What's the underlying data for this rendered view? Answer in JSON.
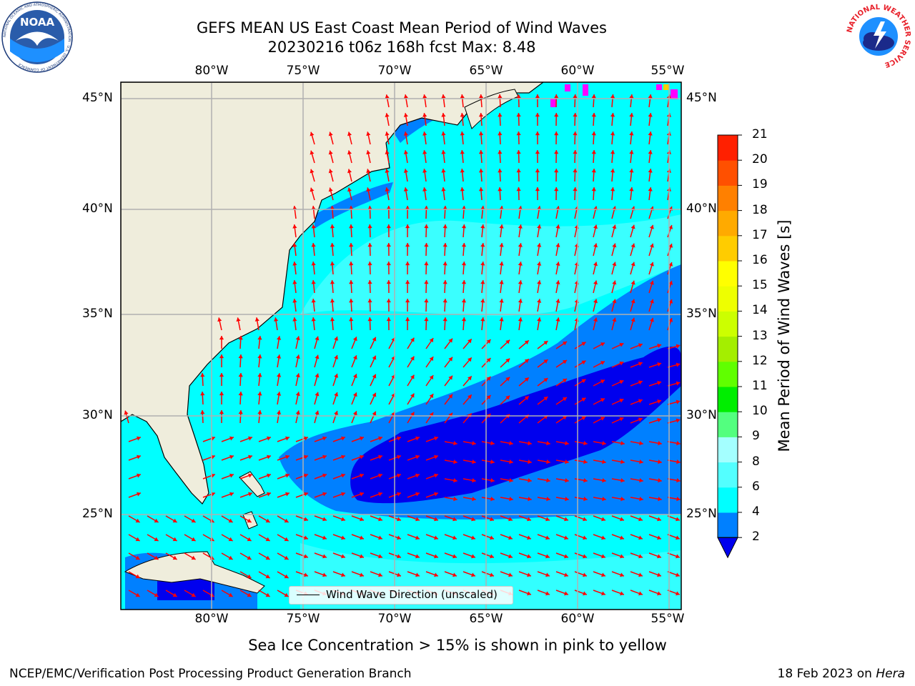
{
  "header": {
    "title_line1": "GEFS MEAN US East Coast Mean Period of Wind Waves",
    "title_line2": "20230216 t06z 168h fcst   Max: 8.48"
  },
  "map": {
    "lon_labels": [
      "80°W",
      "75°W",
      "70°W",
      "65°W",
      "60°W",
      "55°W"
    ],
    "lat_labels": [
      "45°N",
      "40°N",
      "35°N",
      "30°N",
      "25°N"
    ],
    "legend_label": "Wind Wave Direction (unscaled)",
    "colors": {
      "land": "#efeddc",
      "ocean_light": "#00ffff",
      "ocean_pale": "#53ffff",
      "ocean_mid": "#0080ff",
      "ocean_deep": "#0000ee",
      "arrow": "#ff0000",
      "ice": "#ff00ff"
    }
  },
  "colorbar": {
    "label": "Mean Period of Wind Waves [s]",
    "ticks": [
      "2",
      "4",
      "6",
      "8",
      "9",
      "10",
      "11",
      "12",
      "13",
      "14",
      "15",
      "16",
      "17",
      "18",
      "19",
      "20",
      "21"
    ],
    "colors": [
      "#0080ff",
      "#00ffff",
      "#53ffff",
      "#a4ffff",
      "#53ff7f",
      "#00ee00",
      "#60ff00",
      "#a4ee00",
      "#ccff00",
      "#eeff00",
      "#ffff00",
      "#ffcc00",
      "#ffaa00",
      "#ff8000",
      "#ff5000",
      "#ff2000"
    ],
    "under_color": "#0000ee"
  },
  "footer": {
    "subtitle": "Sea Ice Concentration > 15% is shown in pink to yellow",
    "left": "NCEP/EMC/Verification Post Processing Product Generation Branch",
    "right_date": "18 Feb 2023 on",
    "right_machine": "Hera"
  },
  "logos": {
    "noaa": "NOAA",
    "noaa_ring": "NATIONAL OCEANIC AND ATMOSPHERIC ADMINISTRATION · U.S. DEPARTMENT OF COMMERCE",
    "nws_ring": "NATIONAL WEATHER SERVICE"
  }
}
